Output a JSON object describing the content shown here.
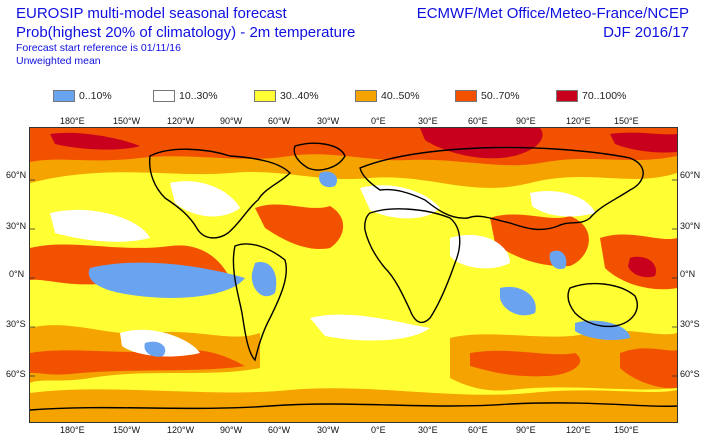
{
  "header": {
    "title": "EUROSIP multi-model seasonal forecast",
    "subtitle": "Prob(highest 20% of climatology) - 2m temperature",
    "start_reference": "Forecast start reference is 01/11/16",
    "weighting": "Unweighted mean",
    "centres": "ECMWF/Met Office/Meteo-France/NCEP",
    "season": "DJF 2016/17"
  },
  "legend": [
    {
      "label": "0..10%",
      "color": "#6aa4f0"
    },
    {
      "label": "10..30%",
      "color": "#ffffff"
    },
    {
      "label": "30..40%",
      "color": "#ffff33"
    },
    {
      "label": "40..50%",
      "color": "#f5a300"
    },
    {
      "label": "50..70%",
      "color": "#f25200"
    },
    {
      "label": "70..100%",
      "color": "#c8001e"
    }
  ],
  "axes": {
    "lon_ticks": [
      "180°E",
      "150°W",
      "120°W",
      "90°W",
      "60°W",
      "30°W",
      "0°E",
      "30°E",
      "60°E",
      "90°E",
      "120°E",
      "150°E"
    ],
    "lat_ticks": [
      "60°N",
      "30°N",
      "0°N",
      "30°S",
      "60°S"
    ]
  },
  "colors": {
    "title_text": "#1010e0",
    "coastline": "#000000"
  }
}
